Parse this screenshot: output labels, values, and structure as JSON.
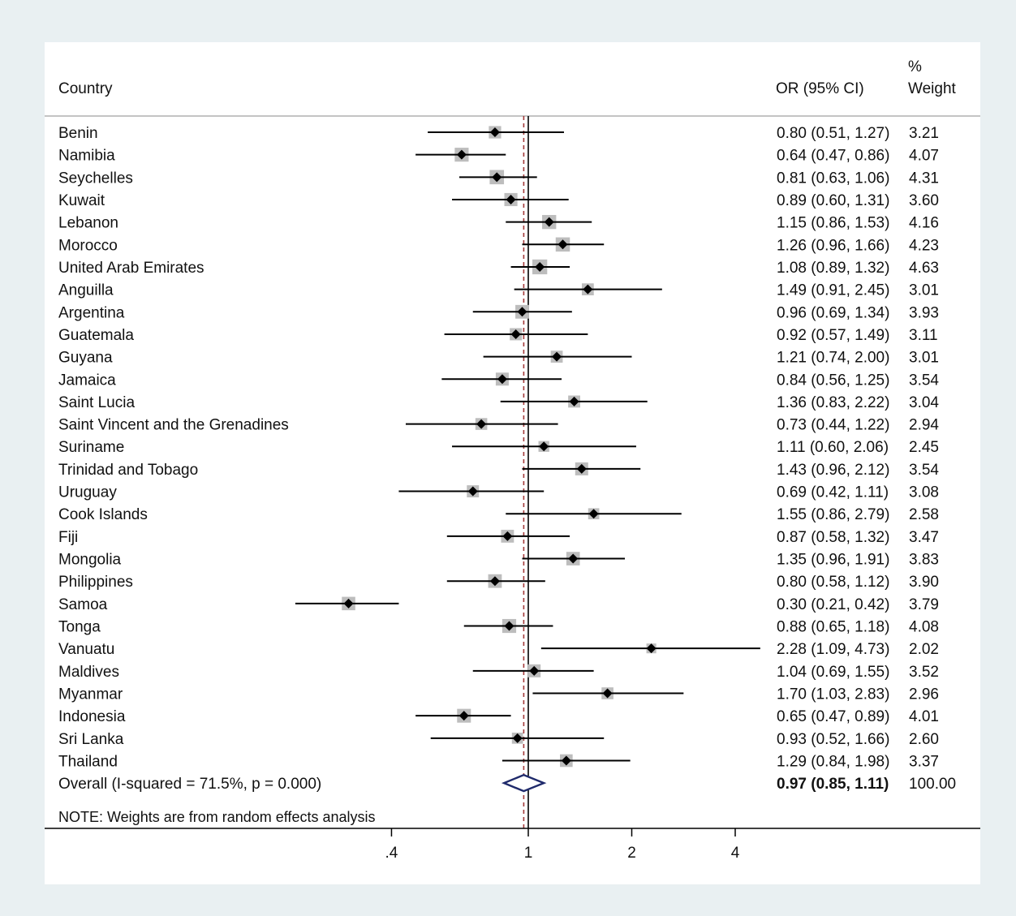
{
  "chart_data": {
    "type": "forest",
    "scale": "log",
    "headers": {
      "country": "Country",
      "or": "OR (95% CI)",
      "weight_pct": "%",
      "weight": "Weight"
    },
    "studies": [
      {
        "country": "Benin",
        "or": 0.8,
        "lo": 0.51,
        "hi": 1.27,
        "or_text": "0.80 (0.51, 1.27)",
        "weight": 3.21,
        "weight_text": "3.21"
      },
      {
        "country": "Namibia",
        "or": 0.64,
        "lo": 0.47,
        "hi": 0.86,
        "or_text": "0.64 (0.47, 0.86)",
        "weight": 4.07,
        "weight_text": "4.07"
      },
      {
        "country": "Seychelles",
        "or": 0.81,
        "lo": 0.63,
        "hi": 1.06,
        "or_text": "0.81 (0.63, 1.06)",
        "weight": 4.31,
        "weight_text": "4.31"
      },
      {
        "country": "Kuwait",
        "or": 0.89,
        "lo": 0.6,
        "hi": 1.31,
        "or_text": "0.89 (0.60, 1.31)",
        "weight": 3.6,
        "weight_text": "3.60"
      },
      {
        "country": "Lebanon",
        "or": 1.15,
        "lo": 0.86,
        "hi": 1.53,
        "or_text": "1.15 (0.86, 1.53)",
        "weight": 4.16,
        "weight_text": "4.16"
      },
      {
        "country": "Morocco",
        "or": 1.26,
        "lo": 0.96,
        "hi": 1.66,
        "or_text": "1.26 (0.96, 1.66)",
        "weight": 4.23,
        "weight_text": "4.23"
      },
      {
        "country": "United Arab Emirates",
        "or": 1.08,
        "lo": 0.89,
        "hi": 1.32,
        "or_text": "1.08 (0.89, 1.32)",
        "weight": 4.63,
        "weight_text": "4.63"
      },
      {
        "country": "Anguilla",
        "or": 1.49,
        "lo": 0.91,
        "hi": 2.45,
        "or_text": "1.49 (0.91, 2.45)",
        "weight": 3.01,
        "weight_text": "3.01"
      },
      {
        "country": "Argentina",
        "or": 0.96,
        "lo": 0.69,
        "hi": 1.34,
        "or_text": "0.96 (0.69, 1.34)",
        "weight": 3.93,
        "weight_text": "3.93"
      },
      {
        "country": "Guatemala",
        "or": 0.92,
        "lo": 0.57,
        "hi": 1.49,
        "or_text": "0.92 (0.57, 1.49)",
        "weight": 3.11,
        "weight_text": "3.11"
      },
      {
        "country": "Guyana",
        "or": 1.21,
        "lo": 0.74,
        "hi": 2.0,
        "or_text": "1.21 (0.74, 2.00)",
        "weight": 3.01,
        "weight_text": "3.01"
      },
      {
        "country": "Jamaica",
        "or": 0.84,
        "lo": 0.56,
        "hi": 1.25,
        "or_text": "0.84 (0.56, 1.25)",
        "weight": 3.54,
        "weight_text": "3.54"
      },
      {
        "country": "Saint Lucia",
        "or": 1.36,
        "lo": 0.83,
        "hi": 2.22,
        "or_text": "1.36 (0.83, 2.22)",
        "weight": 3.04,
        "weight_text": "3.04"
      },
      {
        "country": "Saint Vincent and the Grenadines",
        "or": 0.73,
        "lo": 0.44,
        "hi": 1.22,
        "or_text": "0.73 (0.44, 1.22)",
        "weight": 2.94,
        "weight_text": "2.94"
      },
      {
        "country": "Suriname",
        "or": 1.11,
        "lo": 0.6,
        "hi": 2.06,
        "or_text": "1.11 (0.60, 2.06)",
        "weight": 2.45,
        "weight_text": "2.45"
      },
      {
        "country": "Trinidad and Tobago",
        "or": 1.43,
        "lo": 0.96,
        "hi": 2.12,
        "or_text": "1.43 (0.96, 2.12)",
        "weight": 3.54,
        "weight_text": "3.54"
      },
      {
        "country": "Uruguay",
        "or": 0.69,
        "lo": 0.42,
        "hi": 1.11,
        "or_text": "0.69 (0.42, 1.11)",
        "weight": 3.08,
        "weight_text": "3.08"
      },
      {
        "country": "Cook Islands",
        "or": 1.55,
        "lo": 0.86,
        "hi": 2.79,
        "or_text": "1.55 (0.86, 2.79)",
        "weight": 2.58,
        "weight_text": "2.58"
      },
      {
        "country": "Fiji",
        "or": 0.87,
        "lo": 0.58,
        "hi": 1.32,
        "or_text": "0.87 (0.58, 1.32)",
        "weight": 3.47,
        "weight_text": "3.47"
      },
      {
        "country": "Mongolia",
        "or": 1.35,
        "lo": 0.96,
        "hi": 1.91,
        "or_text": "1.35 (0.96, 1.91)",
        "weight": 3.83,
        "weight_text": "3.83"
      },
      {
        "country": "Philippines",
        "or": 0.8,
        "lo": 0.58,
        "hi": 1.12,
        "or_text": "0.80 (0.58, 1.12)",
        "weight": 3.9,
        "weight_text": "3.90"
      },
      {
        "country": "Samoa",
        "or": 0.3,
        "lo": 0.21,
        "hi": 0.42,
        "or_text": "0.30 (0.21, 0.42)",
        "weight": 3.79,
        "weight_text": "3.79"
      },
      {
        "country": "Tonga",
        "or": 0.88,
        "lo": 0.65,
        "hi": 1.18,
        "or_text": "0.88 (0.65, 1.18)",
        "weight": 4.08,
        "weight_text": "4.08"
      },
      {
        "country": "Vanuatu",
        "or": 2.28,
        "lo": 1.09,
        "hi": 4.73,
        "or_text": "2.28 (1.09, 4.73)",
        "weight": 2.02,
        "weight_text": "2.02"
      },
      {
        "country": "Maldives",
        "or": 1.04,
        "lo": 0.69,
        "hi": 1.55,
        "or_text": "1.04 (0.69, 1.55)",
        "weight": 3.52,
        "weight_text": "3.52"
      },
      {
        "country": "Myanmar",
        "or": 1.7,
        "lo": 1.03,
        "hi": 2.83,
        "or_text": "1.70 (1.03, 2.83)",
        "weight": 2.96,
        "weight_text": "2.96"
      },
      {
        "country": "Indonesia",
        "or": 0.65,
        "lo": 0.47,
        "hi": 0.89,
        "or_text": "0.65 (0.47, 0.89)",
        "weight": 4.01,
        "weight_text": "4.01"
      },
      {
        "country": "Sri Lanka",
        "or": 0.93,
        "lo": 0.52,
        "hi": 1.66,
        "or_text": "0.93 (0.52, 1.66)",
        "weight": 2.6,
        "weight_text": "2.60"
      },
      {
        "country": "Thailand",
        "or": 1.29,
        "lo": 0.84,
        "hi": 1.98,
        "or_text": "1.29 (0.84, 1.98)",
        "weight": 3.37,
        "weight_text": "3.37"
      }
    ],
    "overall": {
      "label": "Overall  (I-squared = 71.5%, p = 0.000)",
      "or": 0.97,
      "lo": 0.85,
      "hi": 1.11,
      "or_text": "0.97 (0.85, 1.11)",
      "weight": 100.0,
      "weight_text": "100.00"
    },
    "note": "NOTE: Weights are from random effects analysis",
    "x_ticks": [
      {
        "value": 0.4,
        "label": ".4"
      },
      {
        "value": 1,
        "label": "1"
      },
      {
        "value": 2,
        "label": "2"
      },
      {
        "value": 4,
        "label": "4"
      }
    ],
    "null_line": 1,
    "colors": {
      "marker": "#000000",
      "box": "#bdbdbd",
      "overall_diamond": "#1f2a6b",
      "overall_line": "#a33a3a",
      "panel": "#ffffff",
      "background": "#e9f0f2"
    }
  }
}
